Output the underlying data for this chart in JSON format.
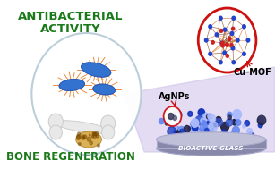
{
  "bg_color": "#ffffff",
  "text_antibacterial_1": "ANTIBACTERIAL",
  "text_antibacterial_2": "ACTIVITY",
  "text_bone": "BONE REGENERATION",
  "text_agnps": "AgNPs",
  "text_cumof": "Cu-MOF",
  "text_bioactive": "BIOACTIVE GLASS",
  "antibacterial_color": "#1a7a1a",
  "bone_color": "#1a7a1a",
  "bacteria_color": "#2266cc",
  "bacteria_edge": "#1144aa",
  "spike_color": "#e87a20",
  "circle_left_edge": "#b8ccd8",
  "circle_right_color": "#cc1111",
  "glass_color": "#8888aa",
  "glass_edge": "#aaaacc",
  "glass_top": "#aaaacc",
  "purple_shadow": "#ccc0e8",
  "particle_dark": "#222244",
  "particle_blue": "#3355cc",
  "particle_light": "#6688ee",
  "bone_fill": "#e8e8e8",
  "bone_edge": "#cccccc",
  "tissue_fill": "#d4a030",
  "tissue_edge": "#a87820"
}
